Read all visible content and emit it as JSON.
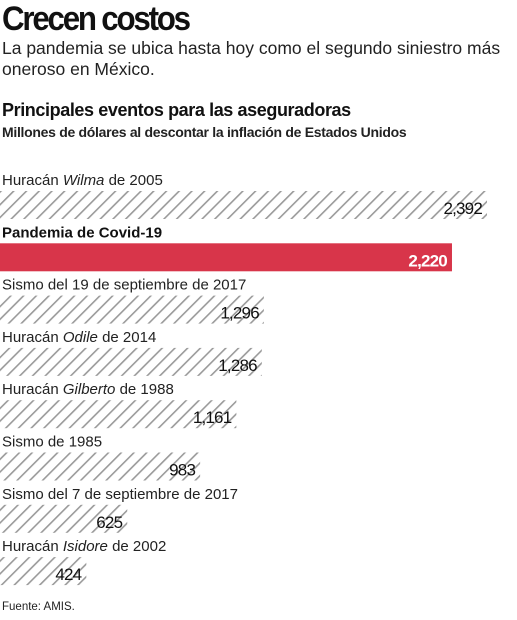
{
  "headline": "Crecen costos",
  "dek": "La pandemia se ubica hasta hoy como el segundo siniestro más oneroso en México.",
  "source": "Fuente: AMIS.",
  "colors": {
    "highlight": "#d8354a",
    "hatch_stroke": "#9a9a9a",
    "text": "#1a1a1a"
  },
  "chart_data": {
    "type": "bar",
    "orientation": "horizontal",
    "title": "Principales eventos para las aseguradoras",
    "subtitle": "Millones de dólares al descontar la inflación de Estados Unidos",
    "categories": [
      "Huracán Wilma de 2005",
      "Pandemia de Covid-19",
      "Sismo del 19 de septiembre de 2017",
      "Huracán Odile de 2014",
      "Huracán Gilberto de 1988",
      "Sismo de 1985",
      "Sismo del 7 de septiembre de 2017",
      "Huracán Isidore de 2002"
    ],
    "category_parts": [
      [
        "Huracán ",
        "Wilma",
        " de 2005"
      ],
      [
        "Pandemia de Covid-19",
        "",
        ""
      ],
      [
        "Sismo del 19 de septiembre de 2017",
        "",
        ""
      ],
      [
        "Huracán ",
        "Odile",
        " de 2014"
      ],
      [
        "Huracán ",
        "Gilberto",
        " de 1988"
      ],
      [
        "Sismo de 1985",
        "",
        ""
      ],
      [
        "Sismo del 7 de septiembre de 2017",
        "",
        ""
      ],
      [
        "Huracán ",
        "Isidore",
        " de 2002"
      ]
    ],
    "values": [
      2392,
      2220,
      1296,
      1286,
      1161,
      983,
      625,
      424
    ],
    "value_labels": [
      "2,392",
      "2,220",
      "1,296",
      "1,286",
      "1,161",
      "983",
      "625",
      "424"
    ],
    "highlight_index": 1,
    "xlim": [
      0,
      2392
    ],
    "grid": false,
    "legend": "none"
  }
}
